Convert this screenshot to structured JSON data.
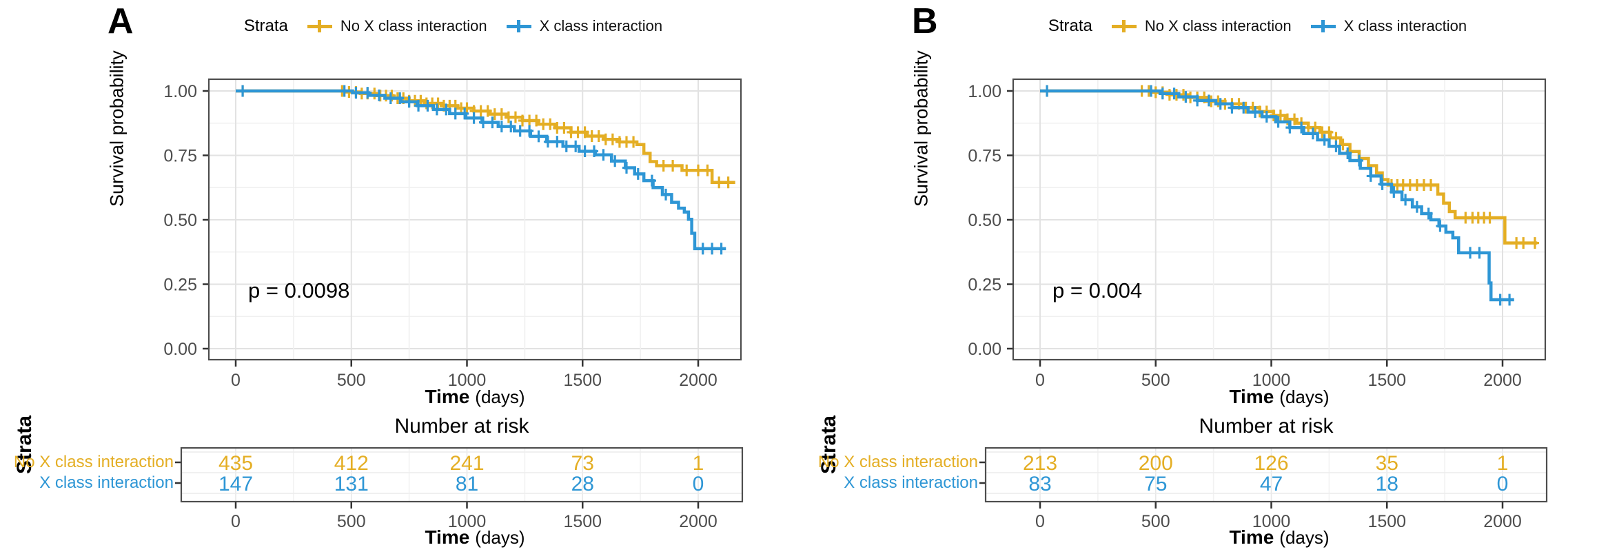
{
  "figure_type": "kaplan_meier_survival_figure",
  "chart_data": [
    {
      "type": "line",
      "subtype": "kaplan_meier_survival",
      "panel_label": "A",
      "legend_title": "Strata",
      "legend_position": "top",
      "ylabel": "Survival probability",
      "xlabel": "Time",
      "xlabel_unit": "(days)",
      "pvalue": "p = 0.0098",
      "grid": true,
      "xlim": [
        0,
        2190
      ],
      "ylim": [
        0,
        1.0
      ],
      "xticks": [
        {
          "label": "0",
          "value": 0
        },
        {
          "label": "500",
          "value": 500
        },
        {
          "label": "1000",
          "value": 1000
        },
        {
          "label": "1500",
          "value": 1500
        },
        {
          "label": "2000",
          "value": 2000
        }
      ],
      "yticks": [
        {
          "label": "0.00",
          "value": 0
        },
        {
          "label": "0.25",
          "value": 0.25
        },
        {
          "label": "0.50",
          "value": 0.5
        },
        {
          "label": "0.75",
          "value": 0.75
        },
        {
          "label": "1.00",
          "value": 1
        }
      ],
      "series": [
        {
          "name": "No X class interaction",
          "color": "#E4AE24",
          "steps": [
            [
              0,
              1
            ],
            [
              430,
              1
            ],
            [
              475,
              0.996
            ],
            [
              540,
              0.99
            ],
            [
              610,
              0.982
            ],
            [
              680,
              0.972
            ],
            [
              750,
              0.962
            ],
            [
              820,
              0.952
            ],
            [
              890,
              0.943
            ],
            [
              960,
              0.933
            ],
            [
              1030,
              0.922
            ],
            [
              1100,
              0.91
            ],
            [
              1170,
              0.898
            ],
            [
              1240,
              0.885
            ],
            [
              1310,
              0.871
            ],
            [
              1380,
              0.857
            ],
            [
              1450,
              0.84
            ],
            [
              1520,
              0.825
            ],
            [
              1590,
              0.812
            ],
            [
              1660,
              0.802
            ],
            [
              1735,
              0.792
            ],
            [
              1765,
              0.758
            ],
            [
              1792,
              0.726
            ],
            [
              1820,
              0.71
            ],
            [
              1930,
              0.692
            ],
            [
              2060,
              0.645
            ],
            [
              2160,
              0.645
            ]
          ],
          "censor_days": [
            30,
            460,
            490,
            520,
            545,
            570,
            600,
            625,
            650,
            675,
            700,
            725,
            750,
            775,
            800,
            825,
            850,
            875,
            900,
            925,
            950,
            975,
            1000,
            1030,
            1060,
            1090,
            1120,
            1150,
            1180,
            1210,
            1240,
            1270,
            1300,
            1330,
            1360,
            1390,
            1420,
            1450,
            1480,
            1510,
            1540,
            1570,
            1600,
            1630,
            1660,
            1690,
            1720,
            1850,
            1890,
            1950,
            2000,
            2040,
            2090,
            2130
          ]
        },
        {
          "name": "X class interaction",
          "color": "#2E96D5",
          "steps": [
            [
              0,
              1
            ],
            [
              450,
              1
            ],
            [
              505,
              0.993
            ],
            [
              575,
              0.983
            ],
            [
              645,
              0.972
            ],
            [
              715,
              0.958
            ],
            [
              785,
              0.943
            ],
            [
              855,
              0.928
            ],
            [
              925,
              0.912
            ],
            [
              995,
              0.895
            ],
            [
              1065,
              0.878
            ],
            [
              1135,
              0.862
            ],
            [
              1205,
              0.845
            ],
            [
              1275,
              0.824
            ],
            [
              1345,
              0.803
            ],
            [
              1415,
              0.785
            ],
            [
              1485,
              0.766
            ],
            [
              1555,
              0.752
            ],
            [
              1625,
              0.728
            ],
            [
              1685,
              0.702
            ],
            [
              1725,
              0.678
            ],
            [
              1765,
              0.652
            ],
            [
              1805,
              0.625
            ],
            [
              1845,
              0.598
            ],
            [
              1885,
              0.568
            ],
            [
              1915,
              0.545
            ],
            [
              1940,
              0.53
            ],
            [
              1958,
              0.502
            ],
            [
              1972,
              0.448
            ],
            [
              1985,
              0.388
            ],
            [
              2120,
              0.388
            ]
          ],
          "censor_days": [
            30,
            470,
            520,
            570,
            620,
            670,
            710,
            750,
            790,
            830,
            870,
            910,
            950,
            990,
            1030,
            1070,
            1110,
            1150,
            1190,
            1230,
            1270,
            1310,
            1350,
            1390,
            1430,
            1470,
            1510,
            1550,
            1590,
            1640,
            1690,
            1740,
            1800,
            1860,
            2020,
            2060,
            2100
          ]
        }
      ],
      "risk_table": {
        "title": "Number at risk",
        "ylabel": "Strata",
        "times": [
          0,
          500,
          1000,
          1500,
          2000
        ],
        "rows": [
          {
            "name": "No X class interaction",
            "color": "#E4AE24",
            "values": [
              "435",
              "412",
              "241",
              "73",
              "1"
            ]
          },
          {
            "name": "X class interaction",
            "color": "#2E96D5",
            "values": [
              "147",
              "131",
              "81",
              "28",
              "0"
            ]
          }
        ]
      }
    },
    {
      "type": "line",
      "subtype": "kaplan_meier_survival",
      "panel_label": "B",
      "legend_title": "Strata",
      "legend_position": "top",
      "ylabel": "Survival probability",
      "xlabel": "Time",
      "xlabel_unit": "(days)",
      "pvalue": "p = 0.004",
      "grid": true,
      "xlim": [
        0,
        2190
      ],
      "ylim": [
        0,
        1.0
      ],
      "xticks": [
        {
          "label": "0",
          "value": 0
        },
        {
          "label": "500",
          "value": 500
        },
        {
          "label": "1000",
          "value": 1000
        },
        {
          "label": "1500",
          "value": 1500
        },
        {
          "label": "2000",
          "value": 2000
        }
      ],
      "yticks": [
        {
          "label": "0.00",
          "value": 0
        },
        {
          "label": "0.25",
          "value": 0.25
        },
        {
          "label": "0.50",
          "value": 0.5
        },
        {
          "label": "0.75",
          "value": 0.75
        },
        {
          "label": "1.00",
          "value": 1
        }
      ],
      "series": [
        {
          "name": "No X class interaction",
          "color": "#E4AE24",
          "steps": [
            [
              0,
              1
            ],
            [
              430,
              1
            ],
            [
              480,
              0.995
            ],
            [
              560,
              0.985
            ],
            [
              640,
              0.975
            ],
            [
              720,
              0.96
            ],
            [
              800,
              0.95
            ],
            [
              880,
              0.935
            ],
            [
              950,
              0.92
            ],
            [
              1010,
              0.905
            ],
            [
              1060,
              0.89
            ],
            [
              1110,
              0.875
            ],
            [
              1160,
              0.858
            ],
            [
              1210,
              0.84
            ],
            [
              1255,
              0.818
            ],
            [
              1300,
              0.792
            ],
            [
              1340,
              0.765
            ],
            [
              1380,
              0.738
            ],
            [
              1420,
              0.71
            ],
            [
              1455,
              0.682
            ],
            [
              1480,
              0.656
            ],
            [
              1505,
              0.635
            ],
            [
              1695,
              0.635
            ],
            [
              1720,
              0.6
            ],
            [
              1745,
              0.565
            ],
            [
              1770,
              0.532
            ],
            [
              1795,
              0.508
            ],
            [
              1985,
              0.508
            ],
            [
              2010,
              0.41
            ],
            [
              2150,
              0.41
            ]
          ],
          "censor_days": [
            30,
            440,
            470,
            500,
            530,
            560,
            590,
            620,
            650,
            680,
            710,
            740,
            770,
            800,
            830,
            860,
            890,
            920,
            950,
            980,
            1010,
            1040,
            1070,
            1100,
            1130,
            1160,
            1190,
            1220,
            1250,
            1280,
            1310,
            1340,
            1520,
            1545,
            1570,
            1600,
            1630,
            1660,
            1690,
            1840,
            1870,
            1895,
            1920,
            1945,
            2060,
            2090,
            2140
          ]
        },
        {
          "name": "X class interaction",
          "color": "#2E96D5",
          "steps": [
            [
              0,
              1
            ],
            [
              450,
              1
            ],
            [
              520,
              0.99
            ],
            [
              600,
              0.977
            ],
            [
              680,
              0.963
            ],
            [
              760,
              0.95
            ],
            [
              830,
              0.935
            ],
            [
              900,
              0.918
            ],
            [
              960,
              0.9
            ],
            [
              1020,
              0.88
            ],
            [
              1080,
              0.858
            ],
            [
              1140,
              0.835
            ],
            [
              1200,
              0.81
            ],
            [
              1250,
              0.785
            ],
            [
              1295,
              0.758
            ],
            [
              1340,
              0.73
            ],
            [
              1385,
              0.7
            ],
            [
              1430,
              0.67
            ],
            [
              1475,
              0.638
            ],
            [
              1520,
              0.608
            ],
            [
              1565,
              0.578
            ],
            [
              1610,
              0.55
            ],
            [
              1650,
              0.524
            ],
            [
              1690,
              0.5
            ],
            [
              1725,
              0.476
            ],
            [
              1755,
              0.452
            ],
            [
              1785,
              0.43
            ],
            [
              1810,
              0.372
            ],
            [
              1930,
              0.372
            ],
            [
              1942,
              0.255
            ],
            [
              1950,
              0.19
            ],
            [
              2050,
              0.19
            ]
          ],
          "censor_days": [
            30,
            480,
            530,
            580,
            630,
            680,
            730,
            780,
            830,
            880,
            930,
            980,
            1030,
            1080,
            1130,
            1180,
            1230,
            1280,
            1330,
            1380,
            1430,
            1480,
            1530,
            1580,
            1630,
            1680,
            1730,
            1860,
            1900,
            1990,
            2030
          ]
        }
      ],
      "risk_table": {
        "title": "Number at risk",
        "ylabel": "Strata",
        "times": [
          0,
          500,
          1000,
          1500,
          2000
        ],
        "rows": [
          {
            "name": "No X class interaction",
            "color": "#E4AE24",
            "values": [
              "213",
              "200",
              "126",
              "35",
              "1"
            ]
          },
          {
            "name": "X class interaction",
            "color": "#2E96D5",
            "values": [
              "83",
              "75",
              "47",
              "18",
              "0"
            ]
          }
        ]
      }
    }
  ]
}
